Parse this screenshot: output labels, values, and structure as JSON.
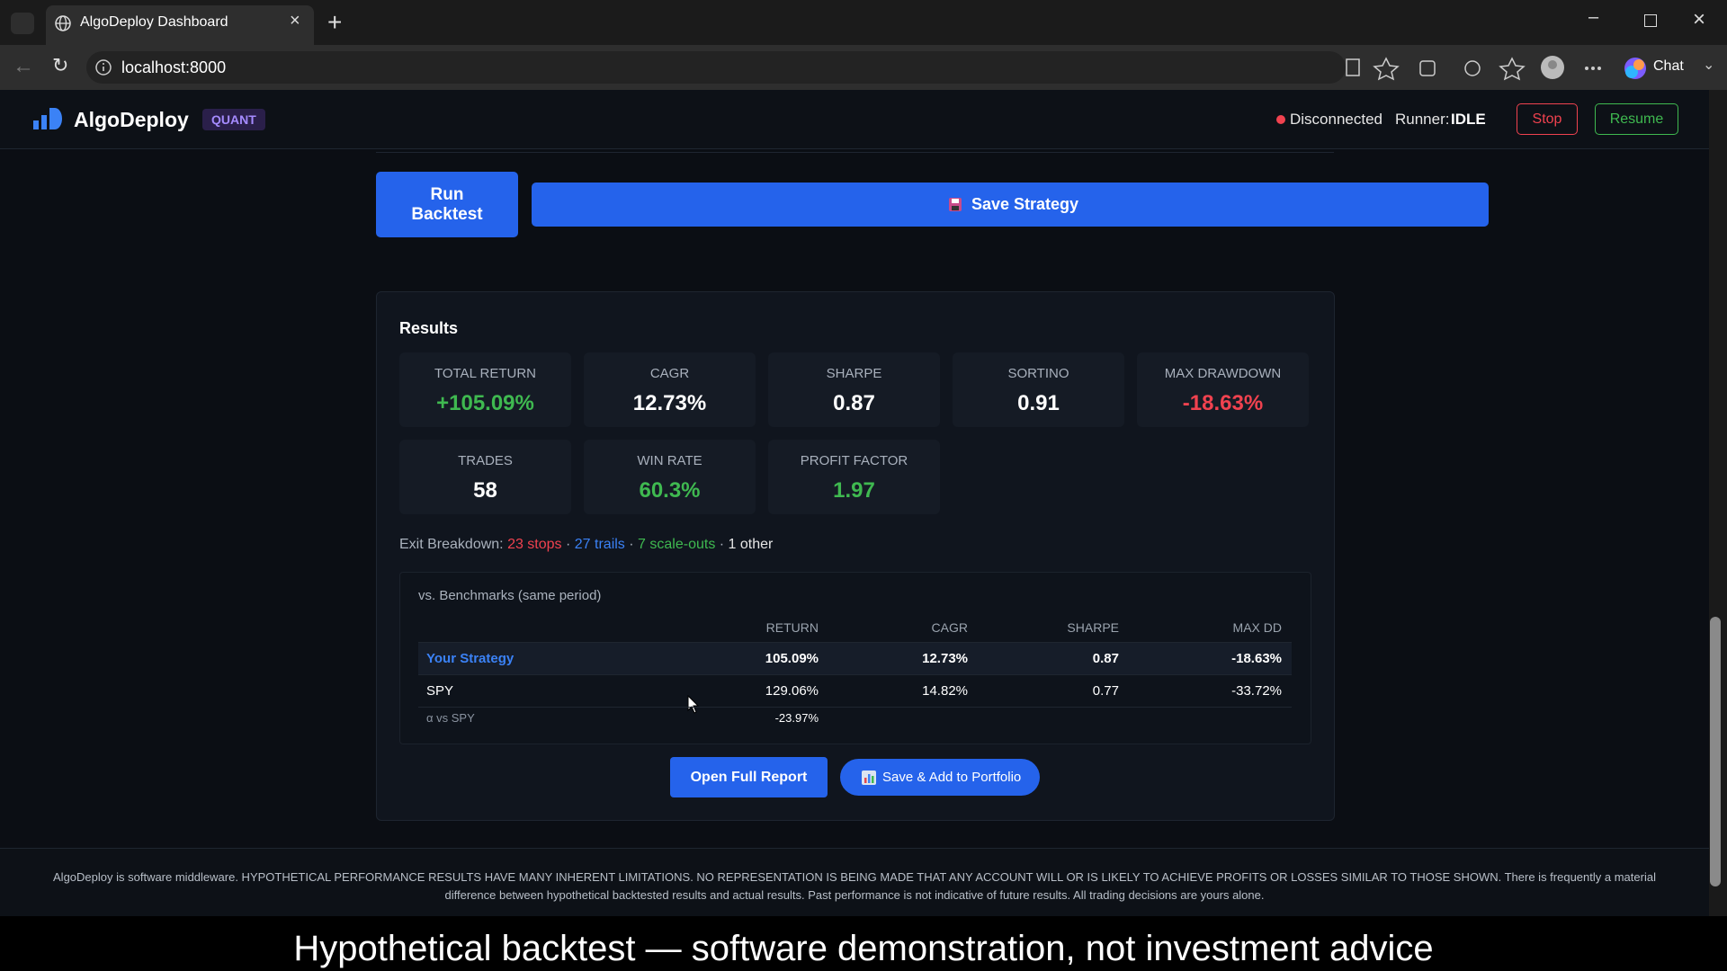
{
  "browser": {
    "tab_title": "AlgoDeploy Dashboard",
    "url": "localhost:8000",
    "chat": "Chat"
  },
  "header": {
    "brand": "AlgoDeploy",
    "badge": "QUANT",
    "status": "Disconnected",
    "runner_label": "Runner:",
    "runner_value": "IDLE",
    "stop": "Stop",
    "resume": "Resume"
  },
  "actions": {
    "run_backtest": "Run Backtest",
    "save_strategy": "Save Strategy"
  },
  "results": {
    "title": "Results",
    "metrics": [
      {
        "label": "TOTAL RETURN",
        "value": "+105.09%",
        "color": "#3fb950"
      },
      {
        "label": "CAGR",
        "value": "12.73%",
        "color": "#ffffff"
      },
      {
        "label": "SHARPE",
        "value": "0.87",
        "color": "#ffffff"
      },
      {
        "label": "SORTINO",
        "value": "0.91",
        "color": "#ffffff"
      },
      {
        "label": "MAX DRAWDOWN",
        "value": "-18.63%",
        "color": "#f0424f"
      },
      {
        "label": "TRADES",
        "value": "58",
        "color": "#ffffff"
      },
      {
        "label": "WIN RATE",
        "value": "60.3%",
        "color": "#3fb950"
      },
      {
        "label": "PROFIT FACTOR",
        "value": "1.97",
        "color": "#3fb950"
      }
    ],
    "exit_breakdown": {
      "label": "Exit Breakdown:",
      "separator": "·",
      "items": [
        {
          "text": "23 stops",
          "color": "#f0424f"
        },
        {
          "text": "27 trails",
          "color": "#3b82f6"
        },
        {
          "text": "7 scale-outs",
          "color": "#3fb950"
        },
        {
          "text": "1 other",
          "color": "#e6e6e6"
        }
      ]
    },
    "benchmarks": {
      "title": "vs. Benchmarks (same period)",
      "columns": [
        "RETURN",
        "CAGR",
        "SHARPE",
        "MAX DD"
      ],
      "rows": [
        {
          "name": "Your Strategy",
          "cells": [
            "105.09%",
            "12.73%",
            "0.87",
            "-18.63%"
          ]
        },
        {
          "name": "SPY",
          "cells": [
            "129.06%",
            "14.82%",
            "0.77",
            "-33.72%"
          ]
        }
      ],
      "alpha": {
        "name": "α vs SPY",
        "value": "-23.97%"
      }
    },
    "buttons": {
      "open_full_report": "Open Full Report",
      "save_add_portfolio": "Save & Add to Portfolio"
    }
  },
  "footer": {
    "disclaimer": "AlgoDeploy is software middleware. HYPOTHETICAL PERFORMANCE RESULTS HAVE MANY INHERENT LIMITATIONS. NO REPRESENTATION IS BEING MADE THAT ANY ACCOUNT WILL OR IS LIKELY TO ACHIEVE PROFITS OR LOSSES SIMILAR TO THOSE SHOWN. There is frequently a material difference between hypothetical backtested results and actual results. Past performance is not indicative of future results. All trading decisions are yours alone."
  },
  "caption": "Hypothetical backtest — software demonstration, not investment advice"
}
